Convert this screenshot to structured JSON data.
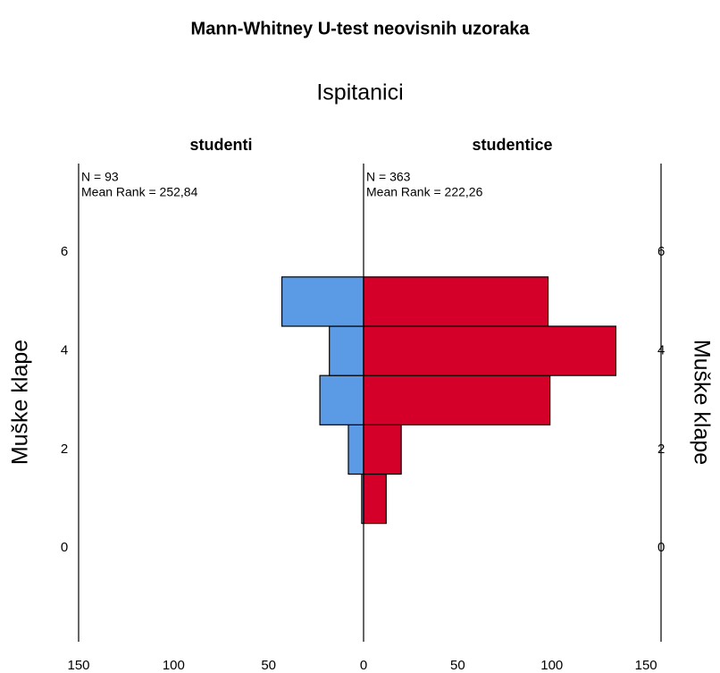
{
  "chart_data": {
    "type": "histogram",
    "orientation": "horizontal",
    "title": "Mann-Whitney U-test neovisnih uzoraka",
    "subtitle": "Ispitanici",
    "ylabel": "Muške klape",
    "bins": [
      0.5,
      1.5,
      2.5,
      3.5,
      4.5,
      5.5
    ],
    "ylim": [
      -1.9,
      7.8
    ],
    "yticks": [
      0,
      2,
      4,
      6
    ],
    "series": [
      {
        "name": "studenti",
        "color": "#5b9be6",
        "side": "left",
        "values": [
          1,
          8,
          23,
          18,
          43
        ],
        "xlim": [
          0,
          150
        ],
        "xticks": [
          0,
          50,
          100,
          150
        ],
        "annotations": [
          "N = 93",
          "Mean Rank = 252,84"
        ]
      },
      {
        "name": "studentice",
        "color": "#d4002a",
        "side": "right",
        "values": [
          12,
          20,
          99,
          134,
          98
        ],
        "xlim": [
          0,
          158
        ],
        "xticks": [
          0,
          50,
          100,
          150
        ],
        "annotations": [
          "N = 363",
          "Mean Rank = 222,26"
        ]
      }
    ]
  }
}
